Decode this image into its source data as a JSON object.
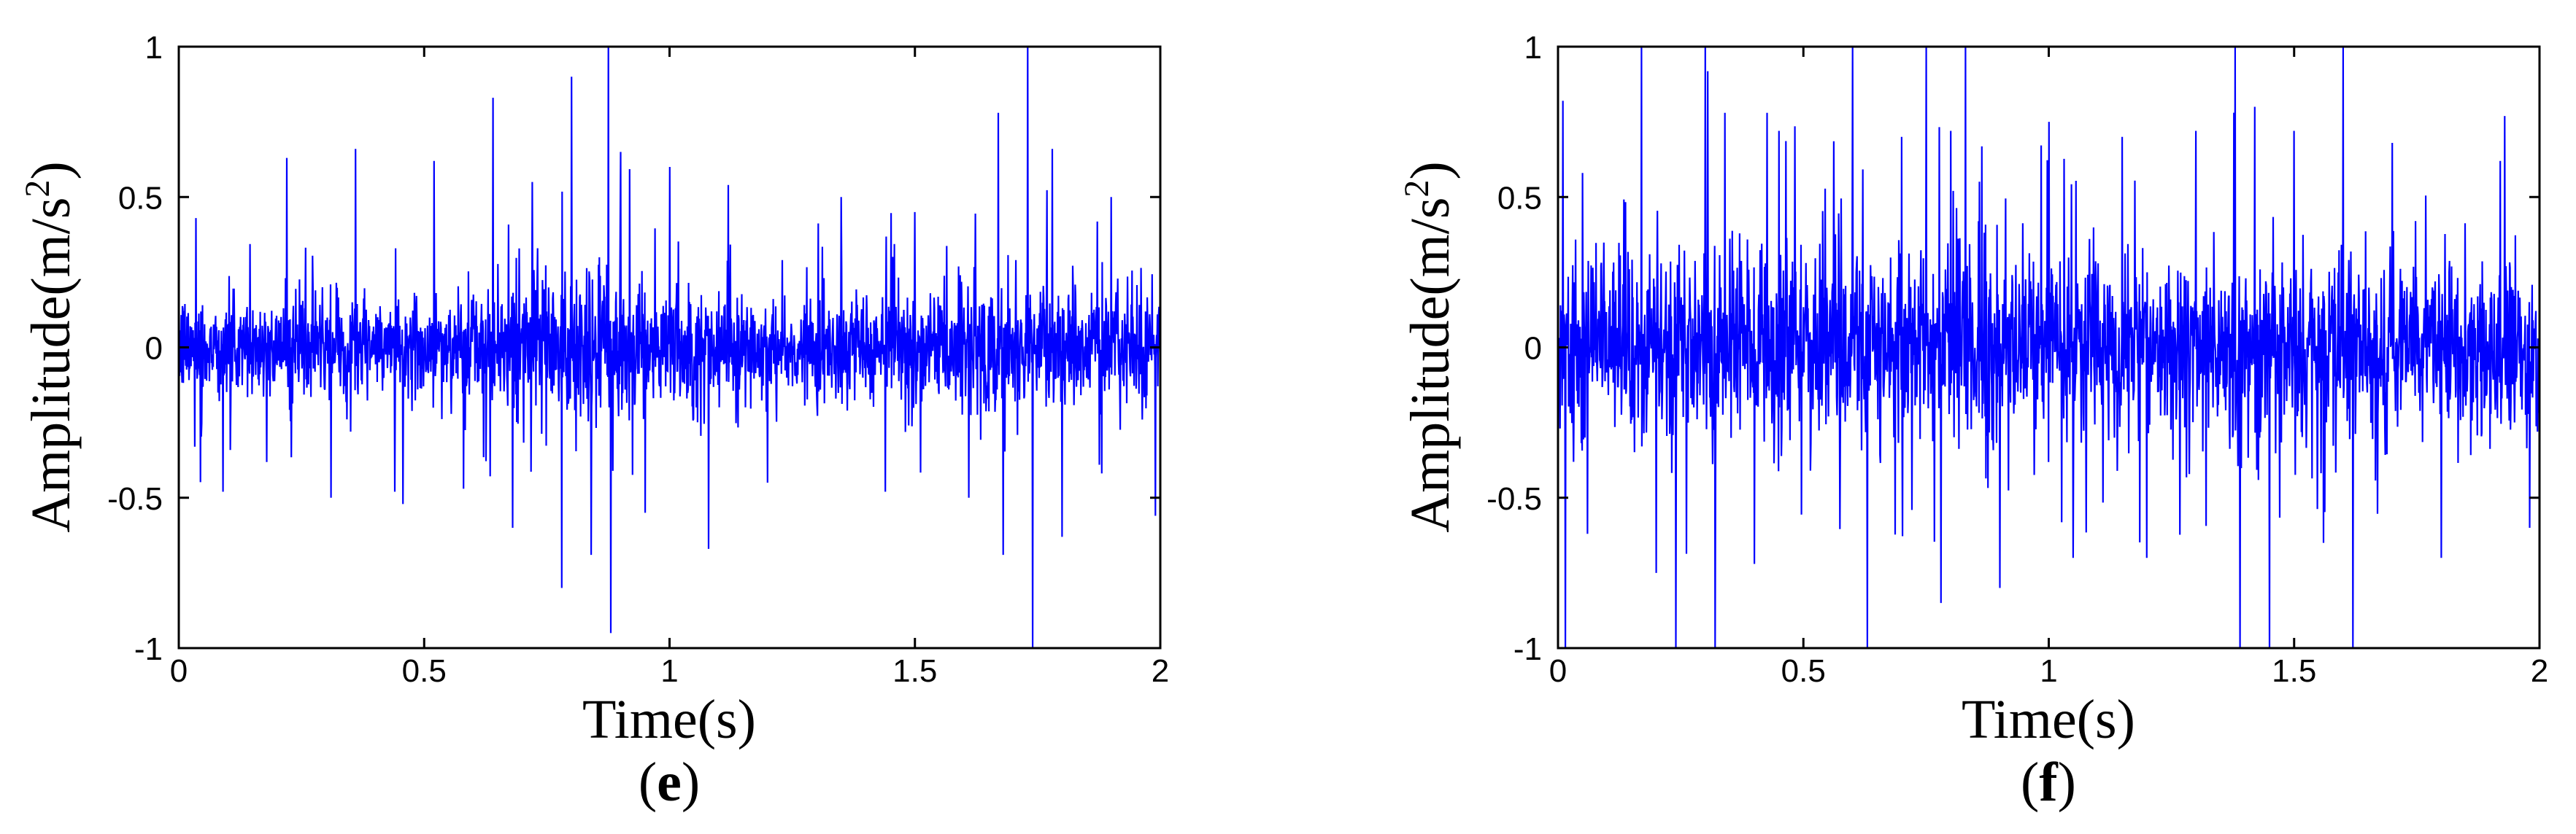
{
  "figure": {
    "panels": [
      {
        "id": "e",
        "label_open": "(",
        "label_letter": "e",
        "label_close": ")",
        "xlabel": "Time(s)",
        "ylabel_main": "Amplitude(m/s",
        "ylabel_sup": "2",
        "ylabel_close": ")"
      },
      {
        "id": "f",
        "label_open": "(",
        "label_letter": "f",
        "label_close": ")",
        "xlabel": "Time(s)",
        "ylabel_main": "Amplitude(m/s",
        "ylabel_sup": "2",
        "ylabel_close": ")"
      }
    ]
  },
  "chart_data": [
    {
      "type": "line",
      "title": "",
      "panel_label": "(e)",
      "xlabel": "Time(s)",
      "ylabel": "Amplitude(m/s²)",
      "xlim": [
        0,
        2
      ],
      "ylim": [
        -1,
        1
      ],
      "x_ticks": [
        0,
        0.5,
        1,
        1.5,
        2
      ],
      "x_tick_labels": [
        "0",
        "0.5",
        "1",
        "1.5",
        "2"
      ],
      "y_ticks": [
        -1,
        -0.5,
        0,
        0.5,
        1
      ],
      "y_tick_labels": [
        "-1",
        "-0.5",
        "0",
        "0.5",
        "1"
      ],
      "grid": false,
      "legend": "none",
      "line_color": "#0000ff",
      "signal": {
        "description_of_shape": "dense vibration signal centered on zero",
        "sample_count": 2400,
        "typical_band": 0.22,
        "envelope_points": {
          "x": [
            0,
            0.2,
            0.4,
            0.6,
            0.8,
            0.9,
            1.0,
            1.2,
            1.4,
            1.6,
            1.7,
            1.8,
            2.0
          ],
          "band": [
            0.2,
            0.19,
            0.2,
            0.2,
            0.28,
            0.3,
            0.24,
            0.19,
            0.2,
            0.23,
            0.28,
            0.24,
            0.2
          ]
        },
        "peaks": [
          {
            "x": 0.035,
            "y": 0.43
          },
          {
            "x": 0.09,
            "y": -0.48
          },
          {
            "x": 0.22,
            "y": 0.63
          },
          {
            "x": 0.31,
            "y": -0.5
          },
          {
            "x": 0.36,
            "y": 0.66
          },
          {
            "x": 0.44,
            "y": -0.48
          },
          {
            "x": 0.52,
            "y": 0.62
          },
          {
            "x": 0.58,
            "y": -0.47
          },
          {
            "x": 0.64,
            "y": 0.83
          },
          {
            "x": 0.68,
            "y": -0.6
          },
          {
            "x": 0.72,
            "y": 0.55
          },
          {
            "x": 0.78,
            "y": -0.8
          },
          {
            "x": 0.8,
            "y": 0.9
          },
          {
            "x": 0.84,
            "y": -0.69
          },
          {
            "x": 0.875,
            "y": 1.0
          },
          {
            "x": 0.88,
            "y": -0.95
          },
          {
            "x": 0.9,
            "y": 0.65
          },
          {
            "x": 0.95,
            "y": -0.55
          },
          {
            "x": 1.0,
            "y": 0.6
          },
          {
            "x": 1.08,
            "y": -0.67
          },
          {
            "x": 1.12,
            "y": 0.54
          },
          {
            "x": 1.2,
            "y": -0.45
          },
          {
            "x": 1.35,
            "y": 0.5
          },
          {
            "x": 1.44,
            "y": -0.48
          },
          {
            "x": 1.5,
            "y": 0.45
          },
          {
            "x": 1.61,
            "y": -0.5
          },
          {
            "x": 1.67,
            "y": 0.78
          },
          {
            "x": 1.68,
            "y": -0.69
          },
          {
            "x": 1.73,
            "y": 1.0
          },
          {
            "x": 1.74,
            "y": -1.0
          },
          {
            "x": 1.78,
            "y": 0.66
          },
          {
            "x": 1.8,
            "y": -0.63
          },
          {
            "x": 1.9,
            "y": 0.5
          },
          {
            "x": 1.99,
            "y": -0.56
          }
        ]
      }
    },
    {
      "type": "line",
      "title": "",
      "panel_label": "(f)",
      "xlabel": "Time(s)",
      "ylabel": "Amplitude(m/s²)",
      "xlim": [
        0,
        2
      ],
      "ylim": [
        -1,
        1
      ],
      "x_ticks": [
        0,
        0.5,
        1,
        1.5,
        2
      ],
      "x_tick_labels": [
        "0",
        "0.5",
        "1",
        "1.5",
        "2"
      ],
      "y_ticks": [
        -1,
        -0.5,
        0,
        0.5,
        1
      ],
      "y_tick_labels": [
        "-1",
        "-0.5",
        "0",
        "0.5",
        "1"
      ],
      "grid": false,
      "legend": "none",
      "line_color": "#0000ff",
      "signal": {
        "description_of_shape": "dense vibration signal centered on zero, larger amplitude",
        "sample_count": 2400,
        "typical_band": 0.36,
        "envelope_points": {
          "x": [
            0,
            0.2,
            0.4,
            0.6,
            0.8,
            1.0,
            1.2,
            1.4,
            1.6,
            1.8,
            2.0
          ],
          "band": [
            0.35,
            0.35,
            0.36,
            0.37,
            0.38,
            0.38,
            0.36,
            0.37,
            0.37,
            0.36,
            0.35
          ]
        },
        "peaks": [
          {
            "x": 0.01,
            "y": 0.82
          },
          {
            "x": 0.015,
            "y": -1.0
          },
          {
            "x": 0.05,
            "y": 0.58
          },
          {
            "x": 0.06,
            "y": -0.62
          },
          {
            "x": 0.17,
            "y": 1.0
          },
          {
            "x": 0.2,
            "y": -0.75
          },
          {
            "x": 0.24,
            "y": -1.0
          },
          {
            "x": 0.3,
            "y": 1.0
          },
          {
            "x": 0.32,
            "y": -1.0
          },
          {
            "x": 0.34,
            "y": 0.78
          },
          {
            "x": 0.4,
            "y": -0.72
          },
          {
            "x": 0.45,
            "y": 0.72
          },
          {
            "x": 0.6,
            "y": 1.0
          },
          {
            "x": 0.63,
            "y": -1.0
          },
          {
            "x": 0.7,
            "y": 0.7
          },
          {
            "x": 0.75,
            "y": 1.0
          },
          {
            "x": 0.78,
            "y": -0.85
          },
          {
            "x": 0.8,
            "y": 0.72
          },
          {
            "x": 0.83,
            "y": 1.0
          },
          {
            "x": 0.9,
            "y": -0.8
          },
          {
            "x": 1.0,
            "y": 0.75
          },
          {
            "x": 1.05,
            "y": -0.7
          },
          {
            "x": 1.15,
            "y": 0.7
          },
          {
            "x": 1.2,
            "y": -0.7
          },
          {
            "x": 1.3,
            "y": 0.72
          },
          {
            "x": 1.38,
            "y": 1.0
          },
          {
            "x": 1.39,
            "y": -1.0
          },
          {
            "x": 1.42,
            "y": 0.8
          },
          {
            "x": 1.45,
            "y": -1.0
          },
          {
            "x": 1.5,
            "y": 0.72
          },
          {
            "x": 1.56,
            "y": -0.65
          },
          {
            "x": 1.6,
            "y": 1.0
          },
          {
            "x": 1.62,
            "y": -1.0
          },
          {
            "x": 1.7,
            "y": 0.68
          },
          {
            "x": 1.8,
            "y": -0.7
          },
          {
            "x": 1.92,
            "y": 0.62
          },
          {
            "x": 1.98,
            "y": -0.6
          }
        ]
      }
    }
  ]
}
